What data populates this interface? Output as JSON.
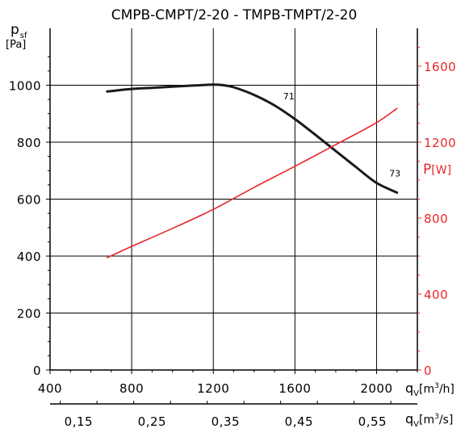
{
  "chart_data": {
    "type": "line",
    "title": "CMPB-CMPT/2-20 - TMPB-TMPT/2-20",
    "x_axis_primary": {
      "label_main": "q",
      "label_sub": "V",
      "label_unit_a": "[m",
      "label_unit_sup": "3",
      "label_unit_b": "/h]",
      "range": [
        400,
        2200
      ],
      "ticks": [
        400,
        800,
        1200,
        1600,
        2000
      ],
      "tick_labels": [
        "400",
        "800",
        "1200",
        "1600",
        "2000"
      ]
    },
    "x_axis_secondary": {
      "label_main": "q",
      "label_sub": "V",
      "label_unit_a": "[m",
      "label_unit_sup": "3",
      "label_unit_b": "/s]",
      "ticks": [
        0.15,
        0.25,
        0.35,
        0.45,
        0.55
      ],
      "tick_labels": [
        "0,15",
        "0,25",
        "0,35",
        "0,45",
        "0,55"
      ]
    },
    "y_axis_left": {
      "label_main": "p",
      "label_sub": "sf",
      "label_unit": "[Pa]",
      "range": [
        0,
        1200
      ],
      "ticks": [
        0,
        200,
        400,
        600,
        800,
        1000
      ],
      "tick_labels": [
        "0",
        "200",
        "400",
        "600",
        "800",
        "1000"
      ],
      "color": "#000000"
    },
    "y_axis_right": {
      "label_main": "P",
      "label_unit": "[W]",
      "range": [
        0,
        1800
      ],
      "ticks": [
        0,
        400,
        800,
        1200,
        1600
      ],
      "tick_labels": [
        "0",
        "400",
        "800",
        "1200",
        "1600"
      ],
      "color": "#e8262b"
    },
    "grid": true,
    "series": [
      {
        "axis": "left",
        "color": "#1a1a1a",
        "x": [
          680,
          800,
          900,
          1000,
          1100,
          1200,
          1250,
          1300,
          1400,
          1500,
          1600,
          1700,
          1800,
          1900,
          2000,
          2100
        ],
        "y": [
          978,
          987,
          991,
          995,
          999,
          1002,
          1000,
          993,
          966,
          929,
          881,
          826,
          769,
          712,
          657,
          623
        ]
      },
      {
        "axis": "right",
        "color": "#e8262b",
        "x": [
          680,
          800,
          1000,
          1200,
          1400,
          1600,
          1800,
          2000,
          2100
        ],
        "y": [
          592,
          651,
          746,
          846,
          962,
          1073,
          1187,
          1303,
          1378
        ]
      }
    ],
    "annotations": [
      {
        "text": "71",
        "x": 1570,
        "y": 950,
        "axis": "left"
      },
      {
        "text": "73",
        "x": 2090,
        "y": 680,
        "axis": "left"
      }
    ]
  }
}
